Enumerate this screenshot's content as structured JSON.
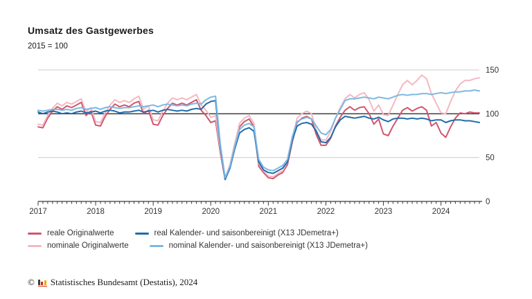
{
  "header": {
    "title": "Umsatz des Gastgewerbes",
    "subtitle": "2015 = 100"
  },
  "footer": {
    "copyright": "©",
    "logo": "destatis-bar-chart-icon",
    "source": "Statistisches Bundesamt (Destatis), 2024"
  },
  "colors": {
    "real_original": "#d0566e",
    "nominal_original": "#f4b8c1",
    "real_adjusted": "#1e6cab",
    "nominal_adjusted": "#7cb7e3",
    "grid_light": "#cccccc",
    "reference_line": "#3b3b3b",
    "axis": "#3b3b3b",
    "text": "#333333"
  },
  "legend": {
    "rows": [
      [
        "real_original",
        "real_adjusted"
      ],
      [
        "nominal_original",
        "nominal_adjusted"
      ]
    ]
  },
  "chart_data": {
    "type": "line",
    "title": "Umsatz des Gastgewerbes",
    "subtitle": "2015 = 100",
    "x_unit": "month",
    "x_start": "2017-01",
    "x_end": "2024-09",
    "x_interval": "monthly",
    "n_points": 93,
    "xticks": [
      2017,
      2018,
      2019,
      2020,
      2021,
      2022,
      2023,
      2024
    ],
    "ylim": [
      0,
      150
    ],
    "yticks": [
      0,
      50,
      100,
      150
    ],
    "ytick_side": "right",
    "reference_line_y": 100,
    "grid": "horizontal light gridlines at 50 and 150, dark emphasized line at 100, x axis at 0 with monthly tick marks",
    "legend_position": "bottom-left",
    "series": [
      {
        "id": "real_original",
        "name": "reale Originalwerte",
        "color": "#d0566e",
        "values": [
          85,
          84,
          95,
          103,
          108,
          105,
          109,
          107,
          110,
          113,
          98,
          103,
          87,
          86,
          97,
          105,
          111,
          108,
          110,
          108,
          112,
          114,
          100,
          104,
          88,
          87,
          98,
          106,
          112,
          110,
          112,
          110,
          113,
          116,
          104,
          98,
          90,
          92,
          55,
          25,
          40,
          63,
          85,
          91,
          94,
          85,
          40,
          33,
          27,
          26,
          30,
          33,
          42,
          68,
          90,
          95,
          97,
          94,
          76,
          64,
          64,
          72,
          86,
          96,
          104,
          108,
          104,
          107,
          108,
          100,
          88,
          94,
          77,
          75,
          86,
          95,
          104,
          107,
          103,
          106,
          108,
          104,
          86,
          90,
          78,
          73,
          85,
          95,
          101,
          100,
          102,
          101,
          101
        ]
      },
      {
        "id": "nominal_original",
        "name": "nominale Originalwerte",
        "color": "#f4b8c1",
        "values": [
          88,
          87,
          98,
          106,
          112,
          109,
          113,
          111,
          114,
          117,
          102,
          107,
          91,
          90,
          101,
          110,
          116,
          113,
          115,
          113,
          117,
          120,
          105,
          109,
          93,
          92,
          103,
          112,
          118,
          116,
          118,
          116,
          119,
          122,
          110,
          104,
          96,
          98,
          58,
          26,
          42,
          66,
          89,
          95,
          98,
          89,
          43,
          35,
          29,
          28,
          32,
          35,
          45,
          72,
          95,
          100,
          103,
          100,
          81,
          70,
          70,
          80,
          95,
          107,
          117,
          122,
          118,
          122,
          124,
          116,
          103,
          110,
          99,
          98,
          110,
          122,
          133,
          138,
          133,
          138,
          144,
          140,
          123,
          112,
          101,
          100,
          114,
          126,
          134,
          138,
          138,
          140,
          141
        ]
      },
      {
        "id": "real_adjusted",
        "name": "real Kalender- und saisonbereinigt (X13 JDemetra+)",
        "color": "#1e6cab",
        "values": [
          102,
          100,
          102,
          103,
          102,
          100,
          101,
          100,
          102,
          103,
          101,
          102,
          103,
          101,
          103,
          104,
          103,
          101,
          102,
          102,
          103,
          104,
          102,
          103,
          104,
          102,
          104,
          105,
          104,
          103,
          104,
          103,
          105,
          106,
          105,
          111,
          114,
          115,
          62,
          25,
          38,
          60,
          78,
          82,
          84,
          80,
          45,
          36,
          33,
          32,
          35,
          38,
          45,
          70,
          86,
          89,
          90,
          88,
          80,
          68,
          67,
          73,
          85,
          93,
          97,
          96,
          95,
          96,
          97,
          95,
          94,
          96,
          93,
          91,
          94,
          95,
          95,
          94,
          95,
          94,
          95,
          94,
          92,
          93,
          93,
          90,
          92,
          93,
          93,
          92,
          92,
          91,
          90
        ]
      },
      {
        "id": "nominal_adjusted",
        "name": "nominal Kalender- und saisonbereinigt (X13 JDemetra+)",
        "color": "#7cb7e3",
        "values": [
          104,
          103,
          104,
          105,
          105,
          104,
          105,
          104,
          106,
          107,
          105,
          106,
          107,
          105,
          107,
          108,
          107,
          106,
          107,
          107,
          108,
          109,
          108,
          109,
          110,
          108,
          110,
          111,
          110,
          109,
          110,
          109,
          111,
          112,
          111,
          116,
          119,
          120,
          65,
          27,
          40,
          63,
          82,
          87,
          89,
          85,
          48,
          39,
          36,
          35,
          38,
          41,
          48,
          74,
          91,
          94,
          96,
          94,
          86,
          78,
          76,
          82,
          95,
          105,
          115,
          117,
          117,
          118,
          119,
          118,
          117,
          119,
          118,
          117,
          119,
          121,
          122,
          121,
          122,
          122,
          123,
          123,
          122,
          123,
          124,
          123,
          124,
          125,
          125,
          126,
          126,
          127,
          126
        ]
      }
    ]
  }
}
